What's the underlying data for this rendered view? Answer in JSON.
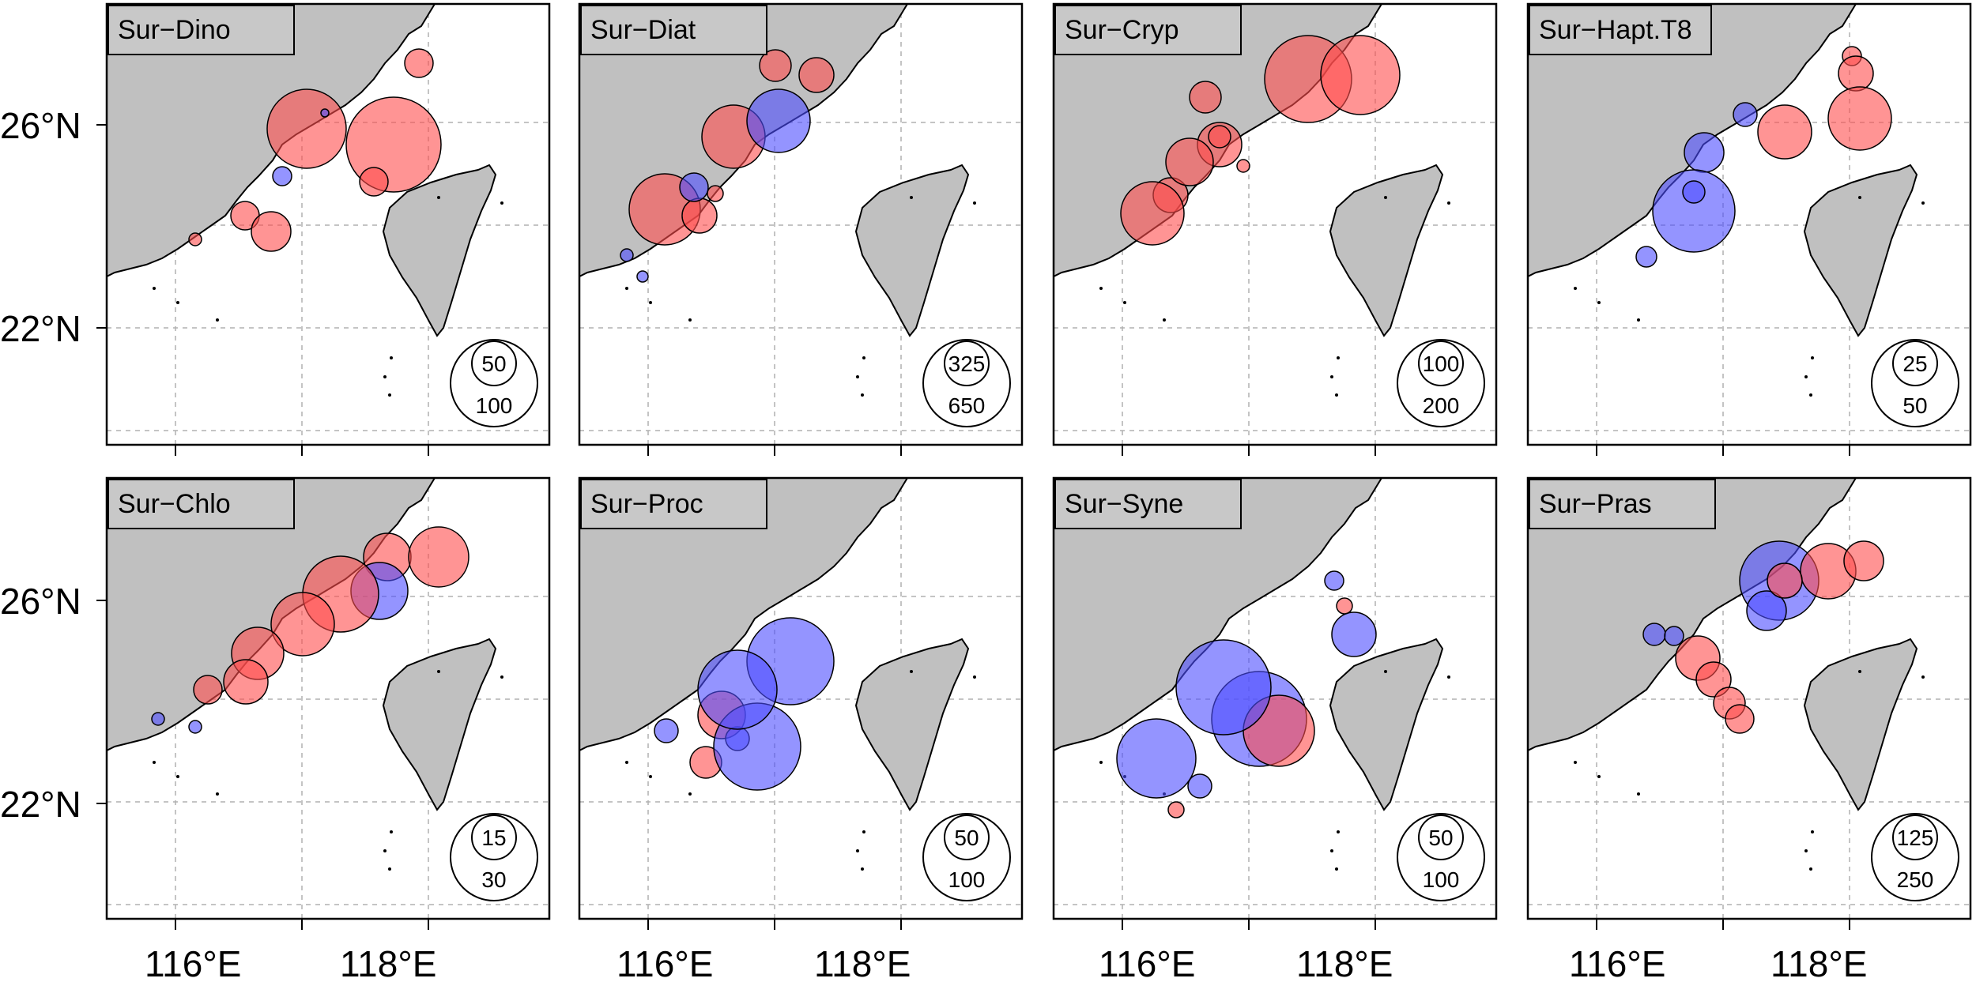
{
  "figure": {
    "axis": {
      "lat_labels": [
        "26°N",
        "22°N"
      ],
      "lon_labels": [
        "116°E",
        "118°E"
      ]
    },
    "colors": {
      "land": "#c0c0c0",
      "positive_bubble": "#ff4d4d",
      "negative_bubble": "#4d4dff",
      "grid": "#b0b0b0"
    },
    "panels": [
      {
        "label": "Sur−Dino",
        "legend": {
          "small": "50",
          "large": "100"
        }
      },
      {
        "label": "Sur−Diat",
        "legend": {
          "small": "325",
          "large": "650"
        }
      },
      {
        "label": "Sur−Cryp",
        "legend": {
          "small": "100",
          "large": "200"
        }
      },
      {
        "label": "Sur−Hapt.T8",
        "legend": {
          "small": "25",
          "large": "50"
        }
      },
      {
        "label": "Sur−Chlo",
        "legend": {
          "small": "15",
          "large": "30"
        }
      },
      {
        "label": "Sur−Proc",
        "legend": {
          "small": "50",
          "large": "100"
        }
      },
      {
        "label": "Sur−Syne",
        "legend": {
          "small": "50",
          "large": "100"
        }
      },
      {
        "label": "Sur−Pras",
        "legend": {
          "small": "125",
          "large": "250"
        }
      }
    ]
  }
}
